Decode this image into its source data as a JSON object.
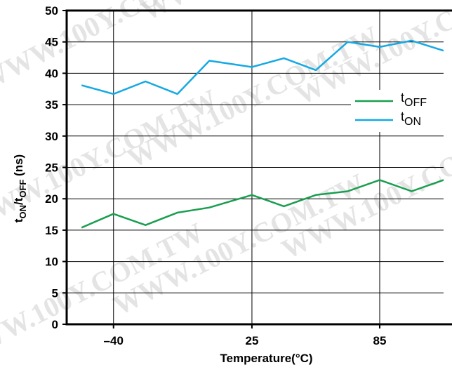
{
  "chart_data": {
    "type": "line",
    "title": "",
    "xlabel": "Temperature(°C)",
    "ylabel": {
      "main1": "t",
      "sub1": "ON",
      "main2": "/t",
      "sub2": "OFF",
      "suffix": " (ns)"
    },
    "x_tick_labels": [
      {
        "value": -40,
        "label": "–40"
      },
      {
        "value": 25,
        "label": "25"
      },
      {
        "value": 85,
        "label": "85"
      }
    ],
    "xlim": [
      -62,
      115
    ],
    "ylim": [
      0,
      50
    ],
    "y_ticks": [
      0,
      5,
      10,
      15,
      20,
      25,
      30,
      35,
      40,
      45,
      50
    ],
    "grid": true,
    "legend_position": "right",
    "series": [
      {
        "name": "tOFF",
        "name_main": "t",
        "name_sub": "OFF",
        "color": "#1a9e50",
        "x": [
          -55,
          -40,
          -25,
          -10,
          5,
          25,
          40,
          55,
          70,
          85,
          100,
          115
        ],
        "y": [
          15.4,
          17.6,
          15.8,
          17.8,
          18.6,
          20.6,
          18.8,
          20.6,
          21.2,
          23.0,
          21.2,
          23.0
        ]
      },
      {
        "name": "tON",
        "name_main": "t",
        "name_sub": "ON",
        "color": "#16a9e2",
        "x": [
          -55,
          -40,
          -25,
          -10,
          5,
          25,
          40,
          55,
          70,
          85,
          100,
          115
        ],
        "y": [
          38.1,
          36.7,
          38.7,
          36.7,
          42.0,
          41.0,
          42.4,
          40.5,
          45.0,
          44.2,
          45.2,
          43.6
        ]
      }
    ]
  },
  "watermark": {
    "text": "WWW.100Y.COM.TW",
    "color": "#cfcfcf"
  }
}
